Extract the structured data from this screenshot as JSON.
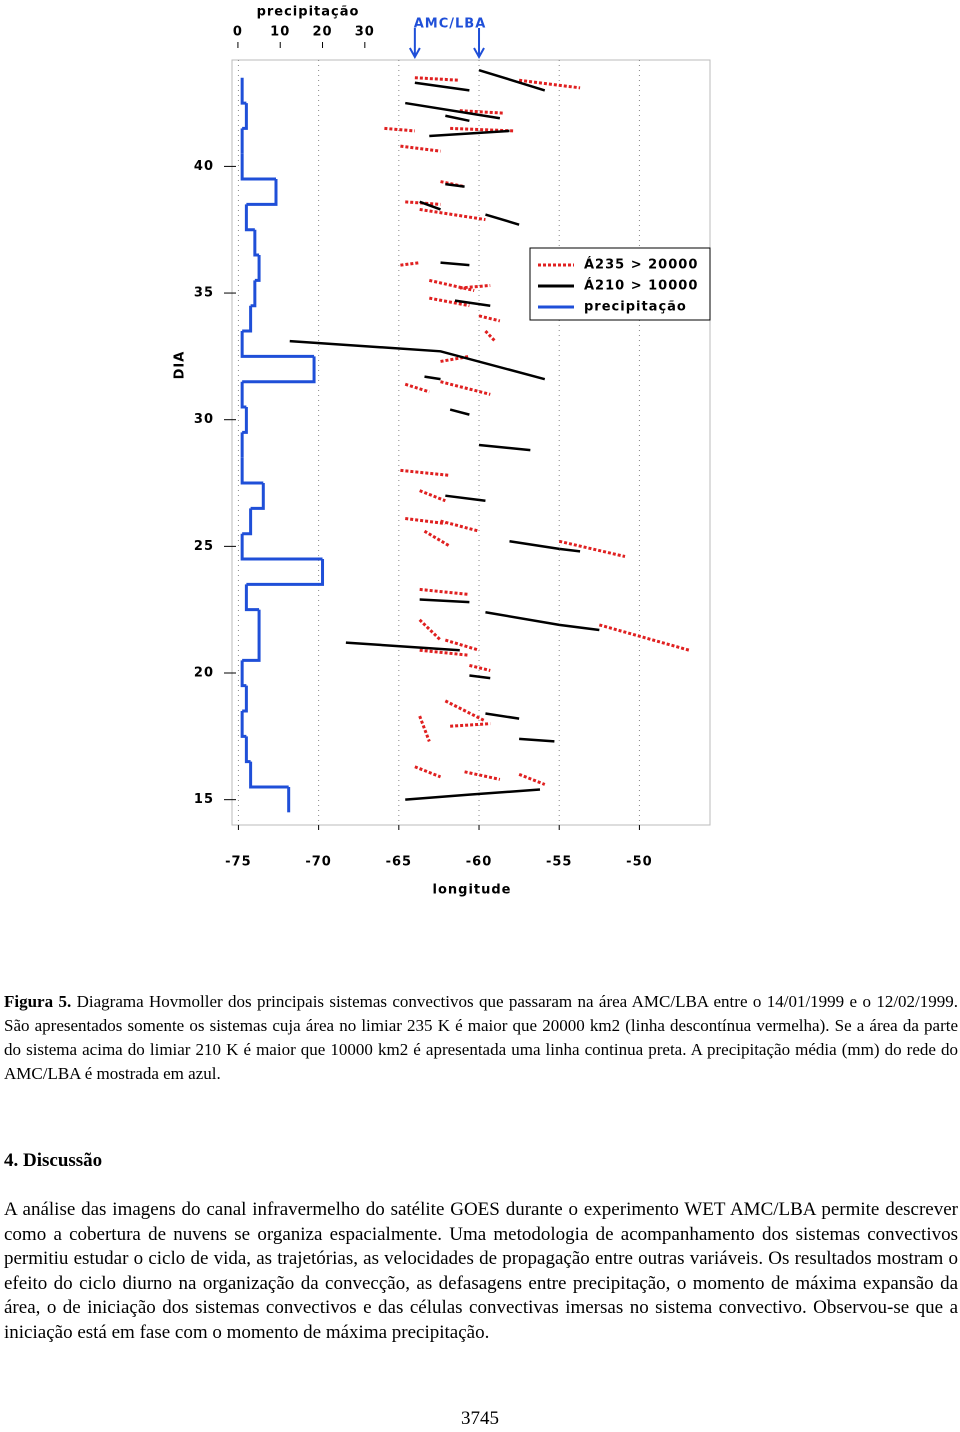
{
  "chart_data": {
    "type": "hovmoller",
    "top_axis_label": "precipitação",
    "annotation": "AMC/LBA",
    "annotation_x": [
      -64,
      -60
    ],
    "xlabel": "longitude",
    "ylabel": "DIA",
    "xlim": [
      -75.4,
      -45.6
    ],
    "xticks": [
      -75,
      -70,
      -65,
      -60,
      -55,
      -50
    ],
    "ylim": [
      14,
      44.2
    ],
    "yticks": [
      15,
      20,
      25,
      30,
      35,
      40
    ],
    "x2lim": [
      -1.4,
      111.6
    ],
    "x2ticks": [
      0,
      10,
      20,
      30
    ],
    "grid": true,
    "legend": "upper right",
    "series": [
      {
        "name": "Á235 > 20000",
        "color": "#e02020",
        "style": "dotted",
        "tracks": [
          {
            "x": [
              -64.0,
              -61.2
            ],
            "y": [
              43.5,
              43.4
            ]
          },
          {
            "x": [
              -57.5,
              -53.7
            ],
            "y": [
              43.4,
              43.1
            ]
          },
          {
            "x": [
              -65.9,
              -64.0
            ],
            "y": [
              41.5,
              41.4
            ]
          },
          {
            "x": [
              -64.9,
              -62.4
            ],
            "y": [
              40.8,
              40.6
            ]
          },
          {
            "x": [
              -61.2,
              -58.4
            ],
            "y": [
              42.2,
              42.1
            ]
          },
          {
            "x": [
              -61.8,
              -57.8
            ],
            "y": [
              41.5,
              41.4
            ]
          },
          {
            "x": [
              -62.4,
              -60.9
            ],
            "y": [
              39.4,
              39.2
            ]
          },
          {
            "x": [
              -64.6,
              -62.4
            ],
            "y": [
              38.6,
              38.5
            ]
          },
          {
            "x": [
              -63.7,
              -59.6
            ],
            "y": [
              38.3,
              37.9
            ]
          },
          {
            "x": [
              -64.9,
              -63.7
            ],
            "y": [
              36.1,
              36.2
            ]
          },
          {
            "x": [
              -63.1,
              -60.3
            ],
            "y": [
              35.5,
              35.1
            ]
          },
          {
            "x": [
              -61.2,
              -59.3
            ],
            "y": [
              35.2,
              35.3
            ]
          },
          {
            "x": [
              -63.1,
              -60.6
            ],
            "y": [
              34.8,
              34.5
            ]
          },
          {
            "x": [
              -60.0,
              -58.7
            ],
            "y": [
              34.1,
              33.9
            ]
          },
          {
            "x": [
              -59.6,
              -59.0
            ],
            "y": [
              33.5,
              33.1
            ]
          },
          {
            "x": [
              -62.4,
              -60.6
            ],
            "y": [
              32.3,
              32.5
            ]
          },
          {
            "x": [
              -64.6,
              -63.1
            ],
            "y": [
              31.4,
              31.1
            ]
          },
          {
            "x": [
              -62.4,
              -59.3
            ],
            "y": [
              31.5,
              31.0
            ]
          },
          {
            "x": [
              -64.9,
              -61.8
            ],
            "y": [
              28.0,
              27.8
            ]
          },
          {
            "x": [
              -63.7,
              -62.1
            ],
            "y": [
              27.2,
              26.8
            ]
          },
          {
            "x": [
              -64.6,
              -62.1
            ],
            "y": [
              26.1,
              25.9
            ]
          },
          {
            "x": [
              -63.4,
              -61.8
            ],
            "y": [
              25.6,
              25.0
            ]
          },
          {
            "x": [
              -62.4,
              -60.0
            ],
            "y": [
              26.0,
              25.6
            ]
          },
          {
            "x": [
              -55.0,
              -50.9
            ],
            "y": [
              25.2,
              24.6
            ]
          },
          {
            "x": [
              -63.7,
              -60.6
            ],
            "y": [
              23.3,
              23.1
            ]
          },
          {
            "x": [
              -63.7,
              -62.4
            ],
            "y": [
              22.1,
              21.3
            ]
          },
          {
            "x": [
              -62.1,
              -60.0
            ],
            "y": [
              21.3,
              20.9
            ]
          },
          {
            "x": [
              -52.5,
              -46.9
            ],
            "y": [
              21.9,
              20.9
            ]
          },
          {
            "x": [
              -63.7,
              -60.6
            ],
            "y": [
              20.9,
              20.7
            ]
          },
          {
            "x": [
              -60.6,
              -59.3
            ],
            "y": [
              20.3,
              20.1
            ]
          },
          {
            "x": [
              -63.7,
              -63.1
            ],
            "y": [
              18.3,
              17.3
            ]
          },
          {
            "x": [
              -62.1,
              -59.6
            ],
            "y": [
              18.9,
              18.1
            ]
          },
          {
            "x": [
              -61.8,
              -59.3
            ],
            "y": [
              17.9,
              18.0
            ]
          },
          {
            "x": [
              -57.5,
              -55.9
            ],
            "y": [
              16.0,
              15.6
            ]
          },
          {
            "x": [
              -64.0,
              -62.4
            ],
            "y": [
              16.3,
              15.9
            ]
          },
          {
            "x": [
              -60.9,
              -58.7
            ],
            "y": [
              16.1,
              15.8
            ]
          }
        ]
      },
      {
        "name": "Á210 > 10000",
        "color": "#000000",
        "style": "solid",
        "tracks": [
          {
            "x": [
              -64.0,
              -60.6
            ],
            "y": [
              43.3,
              43.0
            ]
          },
          {
            "x": [
              -60.0,
              -55.9
            ],
            "y": [
              43.8,
              43.0
            ]
          },
          {
            "x": [
              -64.6,
              -58.7
            ],
            "y": [
              42.5,
              41.9
            ]
          },
          {
            "x": [
              -62.1,
              -60.6
            ],
            "y": [
              42.0,
              41.8
            ]
          },
          {
            "x": [
              -63.1,
              -58.1
            ],
            "y": [
              41.2,
              41.4
            ]
          },
          {
            "x": [
              -62.1,
              -60.9
            ],
            "y": [
              39.3,
              39.2
            ]
          },
          {
            "x": [
              -63.7,
              -62.4
            ],
            "y": [
              38.6,
              38.3
            ]
          },
          {
            "x": [
              -59.6,
              -57.5
            ],
            "y": [
              38.1,
              37.7
            ]
          },
          {
            "x": [
              -62.4,
              -60.6
            ],
            "y": [
              36.2,
              36.1
            ]
          },
          {
            "x": [
              -61.5,
              -59.3
            ],
            "y": [
              34.7,
              34.5
            ]
          },
          {
            "x": [
              -71.8,
              -62.4,
              -55.9
            ],
            "y": [
              33.1,
              32.7,
              31.6
            ]
          },
          {
            "x": [
              -63.4,
              -62.4
            ],
            "y": [
              31.7,
              31.6
            ]
          },
          {
            "x": [
              -61.8,
              -60.6
            ],
            "y": [
              30.4,
              30.2
            ]
          },
          {
            "x": [
              -60.0,
              -56.8
            ],
            "y": [
              29.0,
              28.8
            ]
          },
          {
            "x": [
              -62.1,
              -59.6
            ],
            "y": [
              27.0,
              26.8
            ]
          },
          {
            "x": [
              -58.1,
              -55.0
            ],
            "y": [
              25.2,
              24.9
            ]
          },
          {
            "x": [
              -55.0,
              -53.7
            ],
            "y": [
              24.9,
              24.8
            ]
          },
          {
            "x": [
              -63.7,
              -60.6
            ],
            "y": [
              22.9,
              22.8
            ]
          },
          {
            "x": [
              -59.6,
              -55.0,
              -52.5
            ],
            "y": [
              22.4,
              21.9,
              21.7
            ]
          },
          {
            "x": [
              -68.3,
              -61.2
            ],
            "y": [
              21.2,
              20.9
            ]
          },
          {
            "x": [
              -60.6,
              -59.3
            ],
            "y": [
              19.9,
              19.8
            ]
          },
          {
            "x": [
              -59.6,
              -57.5
            ],
            "y": [
              18.4,
              18.2
            ]
          },
          {
            "x": [
              -57.5,
              -55.3
            ],
            "y": [
              17.4,
              17.3
            ]
          },
          {
            "x": [
              -64.6,
              -60.6,
              -56.2
            ],
            "y": [
              15.0,
              15.2,
              15.4
            ]
          }
        ]
      },
      {
        "name": "precipitação",
        "color": "#1f4fd8",
        "axis": "x2",
        "x": [
          15,
          16,
          17,
          18,
          19,
          20,
          21,
          22,
          23,
          24,
          25,
          26,
          27,
          28,
          29,
          30,
          31,
          32,
          33,
          34,
          35,
          36,
          37,
          38,
          39,
          40,
          41,
          42,
          43
        ],
        "values": [
          12,
          3,
          2,
          1,
          2,
          1,
          5,
          5,
          2,
          20,
          1,
          3,
          6,
          1,
          1,
          2,
          1,
          18,
          1,
          3,
          4,
          5,
          4,
          2,
          9,
          1,
          1,
          2,
          1
        ]
      }
    ]
  },
  "caption": {
    "label": "Figura 5.",
    "text": "Diagrama Hovmoller dos principais sistemas convectivos que passaram na área AMC/LBA entre o 14/01/1999 e o 12/02/1999. São apresentados somente os sistemas cuja área no limiar 235 K é maior que 20000 km2 (linha descontínua vermelha). Se a área da parte do sistema acima do limiar 210 K é maior que 10000 km2 é apresentada uma linha continua preta. A precipitação média (mm) do rede do AMC/LBA é mostrada em azul."
  },
  "section": {
    "heading": "4. Discussão",
    "paragraph": "A análise das imagens do canal infravermelho do satélite GOES durante o experimento WET AMC/LBA permite descrever como a cobertura de nuvens se organiza espacialmente. Uma metodologia de acompanhamento dos sistemas convectivos permitiu estudar o ciclo de vida, as trajetórias, as velocidades de propagação entre outras variáveis. Os resultados mostram o efeito do ciclo diurno na organização da convecção, as defasagens entre precipitação, o momento de máxima expansão da área, o de iniciação dos sistemas convectivos e das células convectivas imersas no sistema convectivo. Observou-se que a iniciação está em fase com o momento de máxima precipitação."
  },
  "page_number": "3745"
}
